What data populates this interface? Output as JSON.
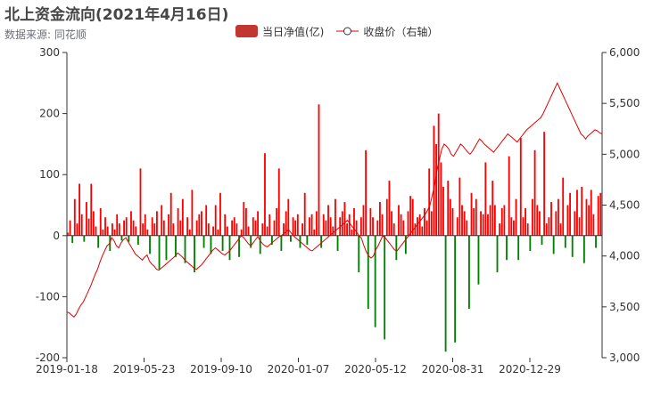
{
  "header": {
    "title": "北上资金流向(2021年4月16日)",
    "subtitle": "数据来源: 同花顺"
  },
  "legend": {
    "bar_label": "当日净值(亿)",
    "line_label": "收盘价（右轴）"
  },
  "colors": {
    "positive_bar": "#ff0000",
    "negative_bar": "#008000",
    "legend_bar": "#c23531",
    "line": "#e00000",
    "axis": "#333333"
  },
  "chart_data": {
    "type": "bar+line",
    "x_tick_labels": [
      "2019-01-18",
      "2019-05-23",
      "2019-09-10",
      "2020-01-07",
      "2020-05-12",
      "2020-08-31",
      "2020-12-29"
    ],
    "x_range": [
      "2019-01-18",
      "2021-04-16"
    ],
    "left_axis": {
      "ylim": [
        -200,
        300
      ],
      "ticks": [
        "-200",
        "-100",
        "0",
        "100",
        "200",
        "300"
      ]
    },
    "right_axis": {
      "ylim": [
        3000,
        6000
      ],
      "ticks": [
        "3,000",
        "3,500",
        "4,000",
        "4,500",
        "5,000",
        "5,500",
        "6,000"
      ]
    },
    "legend_placement": "top-center",
    "series": [
      {
        "name": "当日净值(亿)",
        "type": "bar",
        "values": [
          5,
          25,
          -12,
          60,
          20,
          85,
          35,
          -10,
          55,
          28,
          85,
          40,
          15,
          -20,
          45,
          10,
          30,
          15,
          -25,
          20,
          10,
          35,
          20,
          -8,
          25,
          30,
          -10,
          40,
          25,
          15,
          -15,
          110,
          20,
          35,
          10,
          -30,
          30,
          20,
          40,
          -55,
          50,
          25,
          -40,
          35,
          70,
          20,
          -35,
          45,
          25,
          60,
          -45,
          30,
          10,
          75,
          -60,
          25,
          35,
          40,
          -20,
          50,
          20,
          -30,
          15,
          50,
          10,
          70,
          -25,
          35,
          15,
          -40,
          25,
          30,
          20,
          -35,
          10,
          55,
          45,
          15,
          -20,
          30,
          25,
          40,
          -30,
          20,
          135,
          15,
          35,
          -15,
          25,
          45,
          110,
          -25,
          20,
          40,
          60,
          -10,
          30,
          25,
          35,
          -20,
          20,
          70,
          -15,
          30,
          35,
          10,
          40,
          215,
          -20,
          35,
          25,
          50,
          30,
          15,
          60,
          -25,
          30,
          40,
          55,
          20,
          35,
          10,
          45,
          25,
          -60,
          30,
          50,
          140,
          -120,
          45,
          30,
          -150,
          25,
          55,
          35,
          -170,
          60,
          90,
          40,
          20,
          -40,
          50,
          35,
          25,
          -30,
          40,
          65,
          60,
          20,
          30,
          35,
          15,
          45,
          25,
          110,
          40,
          180,
          150,
          200,
          120,
          80,
          -190,
          90,
          60,
          45,
          -175,
          30,
          95,
          50,
          40,
          25,
          -120,
          70,
          45,
          60,
          -80,
          40,
          35,
          120,
          35,
          50,
          90,
          50,
          -60,
          20,
          45,
          50,
          -40,
          130,
          30,
          25,
          60,
          -40,
          160,
          30,
          45,
          20,
          -25,
          60,
          140,
          50,
          40,
          -15,
          170,
          20,
          30,
          55,
          -30,
          40,
          60,
          20,
          95,
          -20,
          50,
          70,
          -35,
          40,
          75,
          30,
          80,
          -45,
          60,
          50,
          75,
          35,
          -20,
          65,
          70
        ]
      },
      {
        "name": "收盘价（右轴）",
        "type": "line",
        "values": [
          3450,
          3440,
          3420,
          3400,
          3430,
          3480,
          3520,
          3550,
          3600,
          3650,
          3700,
          3760,
          3820,
          3870,
          3940,
          4000,
          4050,
          4100,
          4120,
          4180,
          4150,
          4100,
          4080,
          4130,
          4160,
          4180,
          4140,
          4100,
          4060,
          4020,
          4000,
          3980,
          3960,
          3990,
          4010,
          3950,
          3920,
          3900,
          3870,
          3860,
          3880,
          3900,
          3920,
          3940,
          3960,
          3980,
          4000,
          4030,
          4010,
          3990,
          3960,
          3940,
          3920,
          3900,
          3880,
          3870,
          3890,
          3910,
          3940,
          3970,
          4000,
          4030,
          4060,
          4080,
          4060,
          4040,
          4020,
          4010,
          4030,
          4050,
          4080,
          4110,
          4140,
          4170,
          4200,
          4180,
          4150,
          4120,
          4100,
          4130,
          4160,
          4190,
          4150,
          4120,
          4100,
          4090,
          4110,
          4130,
          4150,
          4170,
          4190,
          4200,
          4220,
          4240,
          4260,
          4230,
          4200,
          4180,
          4160,
          4140,
          4120,
          4100,
          4080,
          4060,
          4050,
          4070,
          4090,
          4110,
          4130,
          4150,
          4170,
          4190,
          4210,
          4230,
          4250,
          4270,
          4290,
          4310,
          4330,
          4350,
          4320,
          4290,
          4260,
          4230,
          4200,
          4170,
          4100,
          4040,
          4000,
          3980,
          4000,
          4060,
          4100,
          4150,
          4200,
          4180,
          4150,
          4120,
          4090,
          4060,
          4050,
          4080,
          4110,
          4140,
          4170,
          4200,
          4230,
          4260,
          4290,
          4320,
          4350,
          4380,
          4410,
          4450,
          4500,
          4600,
          4700,
          4850,
          4950,
          5050,
          5100,
          5080,
          5050,
          5000,
          4980,
          5020,
          5060,
          5100,
          5080,
          5050,
          5020,
          5000,
          5030,
          5070,
          5110,
          5150,
          5130,
          5100,
          5080,
          5060,
          5040,
          5020,
          5050,
          5080,
          5110,
          5140,
          5170,
          5200,
          5180,
          5160,
          5140,
          5120,
          5150,
          5180,
          5210,
          5240,
          5260,
          5280,
          5300,
          5320,
          5340,
          5360,
          5400,
          5450,
          5500,
          5550,
          5600,
          5650,
          5700,
          5650,
          5600,
          5550,
          5500,
          5450,
          5400,
          5350,
          5300,
          5250,
          5200,
          5180,
          5150,
          5180,
          5200,
          5220,
          5240,
          5230,
          5210,
          5200
        ]
      }
    ]
  }
}
